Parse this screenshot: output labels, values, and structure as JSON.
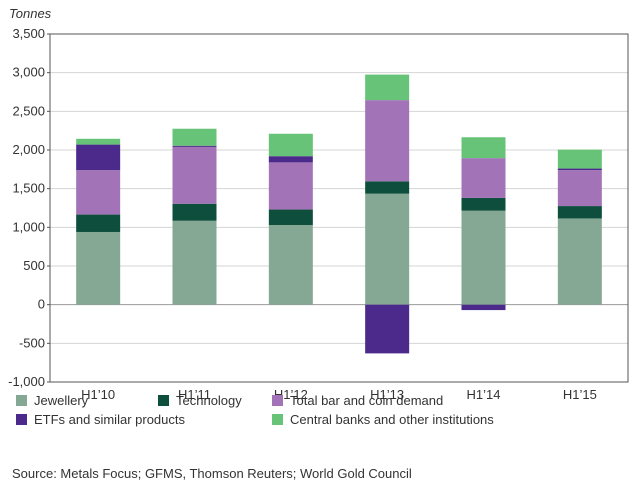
{
  "chart_data": {
    "type": "bar",
    "stacked": true,
    "unit_label": "Tonnes",
    "categories": [
      "H1’10",
      "H1’11",
      "H1’12",
      "H1’13",
      "H1’14",
      "H1’15"
    ],
    "ylim": [
      -1000,
      3500
    ],
    "yticks": [
      3500,
      3000,
      2500,
      2000,
      1500,
      1000,
      500,
      0,
      -500,
      -1000
    ],
    "ytick_labels": [
      "3,500",
      "3,000",
      "2,500",
      "2,000",
      "1,500",
      "1,000",
      "500",
      "0",
      "-500",
      "-1,000"
    ],
    "grid": true,
    "series": [
      {
        "name": "Jewellery",
        "color": "#85a895",
        "values": [
          940,
          1085,
          1030,
          1435,
          1215,
          1115
        ]
      },
      {
        "name": "Technology",
        "color": "#0e4e3c",
        "values": [
          225,
          220,
          200,
          160,
          165,
          160
        ]
      },
      {
        "name": "Total bar and coin demand",
        "color": "#a274b7",
        "values": [
          575,
          735,
          610,
          1050,
          515,
          465
        ]
      },
      {
        "name": "ETFs and similar products",
        "color": "#4b2a8c",
        "values": [
          330,
          15,
          80,
          -630,
          -70,
          20
        ]
      },
      {
        "name": "Central banks and other institutions",
        "color": "#67c377",
        "values": [
          75,
          220,
          290,
          330,
          270,
          245
        ]
      }
    ]
  },
  "legend": {
    "items": [
      {
        "label": "Jewellery",
        "color": "#85a895"
      },
      {
        "label": "Technology",
        "color": "#0e4e3c"
      },
      {
        "label": "Total bar and coin demand",
        "color": "#a274b7"
      },
      {
        "label": "ETFs and similar products",
        "color": "#4b2a8c"
      },
      {
        "label": "Central banks and other institutions",
        "color": "#67c377"
      }
    ]
  },
  "source": "Source: Metals Focus; GFMS, Thomson Reuters; World Gold Council"
}
